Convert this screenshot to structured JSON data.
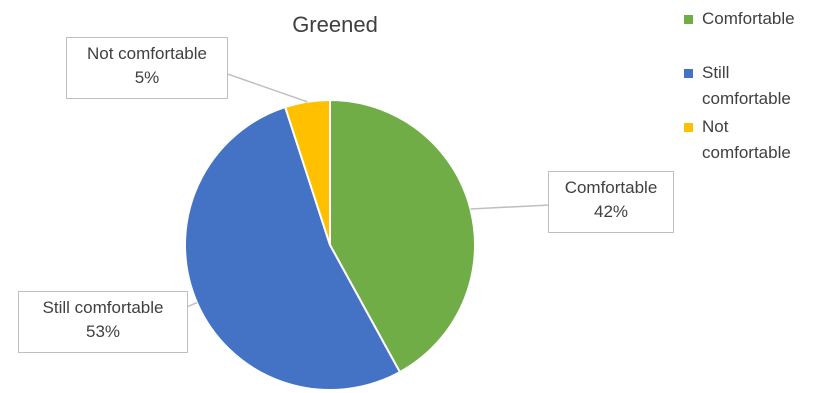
{
  "chart_data": {
    "type": "pie",
    "title": "Greened",
    "categories": [
      "Comfortable",
      "Still comfortable",
      "Not comfortable"
    ],
    "values": [
      42,
      53,
      5
    ],
    "value_labels": [
      "42%",
      "53%",
      "5%"
    ],
    "colors": [
      "#70AD47",
      "#4472C4",
      "#FFC000"
    ],
    "legend_position": "right"
  }
}
